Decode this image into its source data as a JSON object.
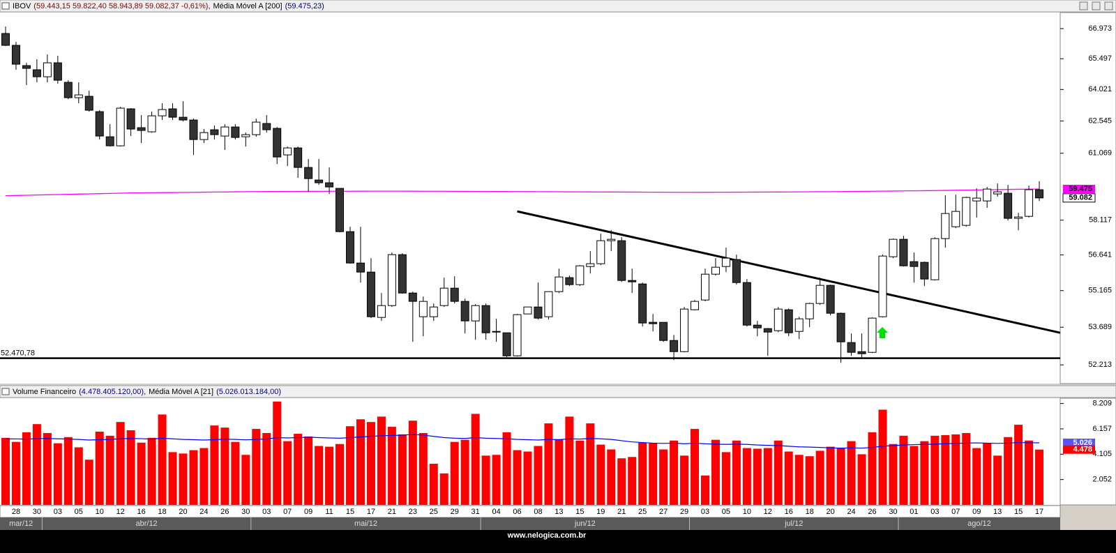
{
  "chart_data": [
    {
      "type": "candlestick",
      "title": "IBOV",
      "title_values": "(59.443,15  59.822,40  58.943,89  59.082,37  -0,61%),",
      "up_color": "#ffffff",
      "down_color": "#333333",
      "open": [
        66732,
        66149,
        65164,
        64963,
        64627,
        65299,
        64362,
        63634,
        63700,
        62981,
        61820,
        61406,
        63111,
        62237,
        62045,
        62785,
        63111,
        62720,
        62591,
        61692,
        62141,
        61852,
        62269,
        61820,
        61916,
        62430,
        62205,
        60995,
        61311,
        60431,
        59872,
        59749,
        59502,
        57626,
        56302,
        55926,
        54080,
        54556,
        56653,
        55065,
        54107,
        54107,
        54556,
        55265,
        54726,
        53940,
        54556,
        53523,
        53468,
        52564,
        54219,
        54500,
        54107,
        55122,
        55696,
        55408,
        56157,
        56273,
        57241,
        57241,
        55580,
        55437,
        53884,
        53884,
        53165,
        52727,
        54388,
        54782,
        55839,
        56157,
        56448,
        55494,
        53773,
        53634,
        53551,
        54388,
        53523,
        54023,
        54641,
        55380,
        54247,
        53083,
        52727,
        52700,
        54107,
        56565,
        57300,
        56360,
        56331,
        55609,
        57330,
        57835,
        57895,
        58951,
        58951,
        59257,
        59288,
        58196,
        58284,
        59443.15
      ],
      "high": [
        67077,
        66319,
        65299,
        65468,
        65705,
        65637,
        64461,
        64362,
        63964,
        63046,
        62397,
        63208,
        63143,
        62818,
        62981,
        63372,
        63372,
        63470,
        62656,
        62173,
        62333,
        62397,
        62397,
        62012,
        62656,
        62818,
        62269,
        61374,
        61374,
        60806,
        60806,
        60431,
        59502,
        57835,
        57835,
        56506,
        55065,
        56741,
        56712,
        55122,
        54923,
        54641,
        55696,
        55753,
        54839,
        54613,
        54641,
        54023,
        53468,
        54219,
        54500,
        55494,
        55122,
        56070,
        55781,
        56215,
        56800,
        57537,
        57686,
        57389,
        56070,
        55494,
        54219,
        53884,
        53385,
        54500,
        54782,
        56070,
        56506,
        56946,
        56653,
        55638,
        53940,
        53662,
        54500,
        54444,
        54107,
        54669,
        55696,
        55408,
        54275,
        53441,
        53441,
        54080,
        56653,
        57330,
        57448,
        56741,
        56360,
        57389,
        59196,
        59226,
        59135,
        59502,
        59564,
        59718,
        59656,
        58435,
        59625,
        59822.4
      ],
      "low": [
        66115,
        64963,
        64229,
        64362,
        64362,
        64295,
        63568,
        63372,
        62981,
        61692,
        61374,
        61374,
        61852,
        61533,
        62012,
        62591,
        62591,
        62527,
        60995,
        61533,
        61692,
        61216,
        61692,
        61374,
        61820,
        62012,
        60587,
        60494,
        59965,
        59348,
        59656,
        59257,
        57597,
        56273,
        55494,
        54052,
        53940,
        54500,
        55037,
        53110,
        53330,
        53940,
        54500,
        54641,
        53441,
        53193,
        53193,
        53110,
        52510,
        52537,
        54219,
        53996,
        53996,
        55065,
        55351,
        55351,
        55868,
        56215,
        56800,
        55523,
        55065,
        53718,
        53523,
        53110,
        52401,
        52700,
        54360,
        54726,
        55781,
        55926,
        55408,
        53718,
        53330,
        52564,
        53495,
        53330,
        53220,
        53690,
        54584,
        54163,
        52293,
        52564,
        52455,
        52673,
        54080,
        56506,
        56157,
        55494,
        55351,
        55580,
        56946,
        57775,
        57835,
        58225,
        58650,
        59135,
        58108,
        57686,
        58225,
        58943.89
      ],
      "close": [
        66149,
        65231,
        65030,
        64627,
        65299,
        64461,
        63634,
        63766,
        63046,
        61852,
        61406,
        63143,
        62173,
        62109,
        62785,
        63078,
        62720,
        62591,
        61692,
        62012,
        61916,
        62269,
        61788,
        61916,
        62494,
        62141,
        60901,
        61311,
        60431,
        59934,
        59749,
        59564,
        57626,
        56302,
        55926,
        54107,
        54556,
        56653,
        55065,
        54726,
        54726,
        54500,
        55265,
        54726,
        53940,
        54556,
        53468,
        53495,
        52564,
        54191,
        54500,
        54052,
        55122,
        55724,
        55408,
        56186,
        56273,
        57241,
        57300,
        55580,
        55523,
        53857,
        53829,
        53165,
        52727,
        54416,
        54726,
        55839,
        56128,
        56506,
        55494,
        53773,
        53662,
        53495,
        54416,
        53468,
        54023,
        54641,
        55380,
        54247,
        53110,
        52700,
        52645,
        54052,
        56594,
        57300,
        56186,
        56157,
        55638,
        57330,
        58405,
        58496,
        59104,
        59074,
        59471,
        59350,
        58196,
        58255,
        59444,
        59082.37
      ],
      "close_tag": "59.082",
      "ma": {
        "name": "Média Móvel A [200]",
        "value_text": "(59.475,23)",
        "color": "#ff00ff",
        "tag": "59.475",
        "values": [
          59180,
          59190,
          59200,
          59210,
          59220,
          59230,
          59240,
          59250,
          59260,
          59270,
          59280,
          59290,
          59300,
          59305,
          59310,
          59315,
          59320,
          59325,
          59330,
          59335,
          59340,
          59345,
          59350,
          59355,
          59360,
          59362,
          59364,
          59366,
          59368,
          59370,
          59372,
          59374,
          59375,
          59376,
          59377,
          59378,
          59378,
          59378,
          59378,
          59377,
          59376,
          59375,
          59374,
          59372,
          59370,
          59368,
          59366,
          59364,
          59362,
          59360,
          59358,
          59356,
          59354,
          59352,
          59350,
          59348,
          59346,
          59344,
          59342,
          59340,
          59338,
          59336,
          59334,
          59332,
          59330,
          59330,
          59330,
          59331,
          59332,
          59333,
          59335,
          59337,
          59339,
          59341,
          59343,
          59345,
          59348,
          59351,
          59354,
          59357,
          59360,
          59365,
          59370,
          59375,
          59380,
          59385,
          59390,
          59395,
          59400,
          59405,
          59412,
          59419,
          59426,
          59433,
          59440,
          59447,
          59454,
          59461,
          59468,
          59475.23
        ]
      },
      "support": {
        "value": 52470.78,
        "label": "52.470,78"
      },
      "trendline": {
        "values": [
          58497,
          53469
        ]
      },
      "log": true,
      "ylim": [
        51496,
        67774
      ],
      "yticks": [
        {
          "value": 66973,
          "label": "66.973"
        },
        {
          "value": 65497,
          "label": "65.497"
        },
        {
          "value": 64021,
          "label": "64.021"
        },
        {
          "value": 62545,
          "label": "62.545"
        },
        {
          "value": 61069,
          "label": "61.069"
        },
        {
          "value": 58117,
          "label": "58.117"
        },
        {
          "value": 56641,
          "label": "56.641"
        },
        {
          "value": 55165,
          "label": "55.165"
        },
        {
          "value": 53689,
          "label": "53.689"
        },
        {
          "value": 52213,
          "label": "52.213"
        }
      ]
    },
    {
      "type": "bar",
      "title": "Volume Financeiro",
      "title_values": "(4.478.405.120,00),",
      "color": "#ff0000",
      "values": [
        5.43,
        5.1,
        5.88,
        6.54,
        5.82,
        4.99,
        5.49,
        4.66,
        3.66,
        5.93,
        5.6,
        6.71,
        6.04,
        5.04,
        5.43,
        7.32,
        4.27,
        4.16,
        4.43,
        4.6,
        6.43,
        6.26,
        5.1,
        4.05,
        6.15,
        5.82,
        8.37,
        5.16,
        5.76,
        5.54,
        4.77,
        4.71,
        4.93,
        6.37,
        6.93,
        6.71,
        7.15,
        6.32,
        5.71,
        6.82,
        5.82,
        3.33,
        2.55,
        5.1,
        5.27,
        7.37,
        3.99,
        4.05,
        5.88,
        4.43,
        4.32,
        4.77,
        6.6,
        5.32,
        7.15,
        5.21,
        6.6,
        4.88,
        4.49,
        3.77,
        3.88,
        5.04,
        4.99,
        4.49,
        5.21,
        3.99,
        6.15,
        2.38,
        5.27,
        4.27,
        5.21,
        4.6,
        4.55,
        4.6,
        5.21,
        4.32,
        4.05,
        3.94,
        4.38,
        4.71,
        4.6,
        5.16,
        4.1,
        5.88,
        7.71,
        4.93,
        5.6,
        4.77,
        5.16,
        5.6,
        5.65,
        5.71,
        5.82,
        4.6,
        4.99,
        3.99,
        5.49,
        6.49,
        5.21,
        4.478
      ],
      "value_tag": "4.478",
      "ma": {
        "name": "Média Móvel A [21]",
        "value_text": "(5.026.013.184,00)",
        "color": "#0000ff",
        "tag": "5.026",
        "values": [
          5.35,
          5.34,
          5.33,
          5.36,
          5.38,
          5.35,
          5.33,
          5.3,
          5.25,
          5.28,
          5.3,
          5.35,
          5.38,
          5.36,
          5.33,
          5.4,
          5.35,
          5.3,
          5.28,
          5.25,
          5.28,
          5.32,
          5.3,
          5.27,
          5.3,
          5.33,
          5.45,
          5.42,
          5.45,
          5.48,
          5.45,
          5.42,
          5.4,
          5.45,
          5.5,
          5.55,
          5.6,
          5.62,
          5.65,
          5.7,
          5.65,
          5.55,
          5.45,
          5.4,
          5.38,
          5.45,
          5.4,
          5.38,
          5.35,
          5.3,
          5.28,
          5.25,
          5.3,
          5.28,
          5.35,
          5.33,
          5.38,
          5.35,
          5.3,
          5.2,
          5.1,
          5.05,
          5.0,
          4.98,
          5.0,
          4.95,
          5.0,
          4.95,
          4.92,
          4.9,
          4.92,
          4.9,
          4.85,
          4.82,
          4.8,
          4.75,
          4.7,
          4.68,
          4.65,
          4.62,
          4.6,
          4.62,
          4.6,
          4.65,
          4.75,
          4.8,
          4.85,
          4.88,
          4.9,
          4.92,
          4.95,
          4.98,
          5.0,
          5.02,
          5.0,
          4.98,
          5.0,
          5.05,
          5.03,
          5.026
        ]
      },
      "ylim": [
        0,
        8.64
      ],
      "yticks": [
        2.052,
        4.105,
        6.157,
        8.209
      ],
      "categories": [
        null,
        "28",
        null,
        "30",
        null,
        "03",
        null,
        "05",
        null,
        "10",
        null,
        "12",
        null,
        "16",
        null,
        "18",
        null,
        "20",
        null,
        "24",
        null,
        "26",
        null,
        "30",
        null,
        "03",
        null,
        "07",
        null,
        "09",
        null,
        "11",
        null,
        "15",
        null,
        "17",
        null,
        "21",
        null,
        "23",
        null,
        "25",
        null,
        "29",
        null,
        "31",
        null,
        "04",
        null,
        "06",
        null,
        "08",
        null,
        "13",
        null,
        "15",
        null,
        "19",
        null,
        "21",
        null,
        "25",
        null,
        "27",
        null,
        "29",
        null,
        "03",
        null,
        "05",
        null,
        "10",
        null,
        "12",
        null,
        "16",
        null,
        "18",
        null,
        "20",
        null,
        "24",
        null,
        "26",
        null,
        "30",
        null,
        "01",
        null,
        "03",
        null,
        "07",
        null,
        "09",
        null,
        "13",
        null,
        "15",
        null,
        "17"
      ],
      "months": [
        "mar/12",
        "abr/12",
        "mai/12",
        "jun/12",
        "jul/12",
        "ago/12"
      ]
    }
  ],
  "footer": "www.nelogica.com.br"
}
